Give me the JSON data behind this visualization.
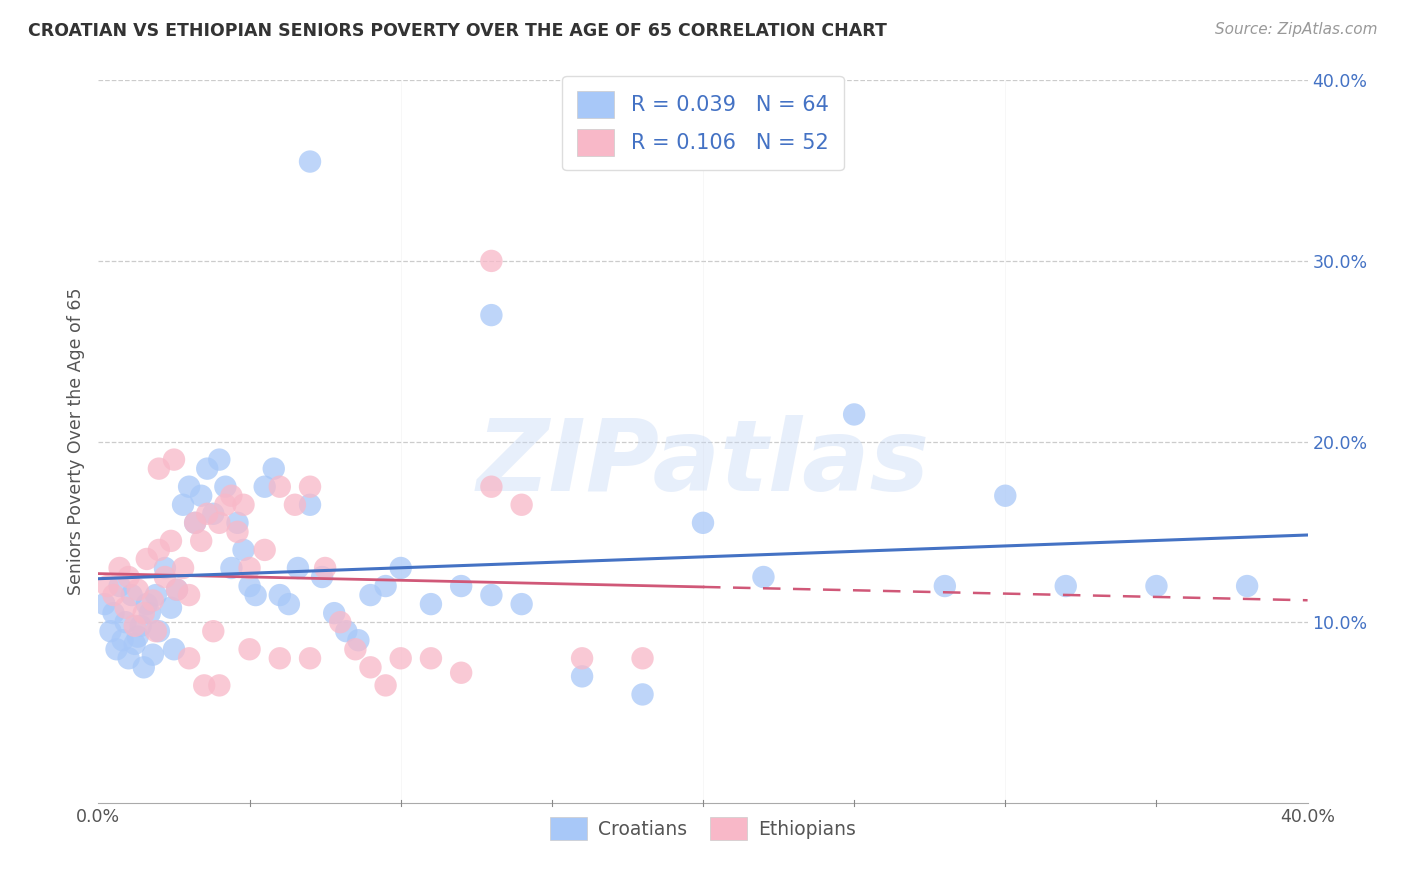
{
  "title": "CROATIAN VS ETHIOPIAN SENIORS POVERTY OVER THE AGE OF 65 CORRELATION CHART",
  "source": "Source: ZipAtlas.com",
  "ylabel": "Seniors Poverty Over the Age of 65",
  "xlim": [
    0.0,
    0.4
  ],
  "ylim": [
    0.0,
    0.4
  ],
  "watermark": "ZIPatlas",
  "croatians_color": "#a8c8f8",
  "ethiopians_color": "#f8b8c8",
  "line_croatians_color": "#4472c4",
  "line_ethiopians_color": "#d05878",
  "legend_text_color": "#4472c4",
  "ytick_color": "#4472c4",
  "xtick_color": "#555555",
  "R_croatians": 0.039,
  "N_croatians": 64,
  "R_ethiopians": 0.106,
  "N_ethiopians": 52,
  "croatians_x": [
    0.002,
    0.004,
    0.005,
    0.006,
    0.007,
    0.008,
    0.009,
    0.01,
    0.011,
    0.012,
    0.013,
    0.014,
    0.015,
    0.016,
    0.017,
    0.018,
    0.019,
    0.02,
    0.022,
    0.024,
    0.025,
    0.026,
    0.028,
    0.03,
    0.032,
    0.034,
    0.036,
    0.038,
    0.04,
    0.042,
    0.044,
    0.046,
    0.048,
    0.05,
    0.052,
    0.055,
    0.058,
    0.06,
    0.063,
    0.066,
    0.07,
    0.074,
    0.078,
    0.082,
    0.086,
    0.09,
    0.095,
    0.1,
    0.11,
    0.12,
    0.13,
    0.14,
    0.16,
    0.18,
    0.2,
    0.22,
    0.25,
    0.28,
    0.3,
    0.32,
    0.35,
    0.38,
    0.07,
    0.13
  ],
  "croatians_y": [
    0.11,
    0.095,
    0.105,
    0.085,
    0.12,
    0.09,
    0.1,
    0.08,
    0.115,
    0.088,
    0.092,
    0.098,
    0.075,
    0.11,
    0.105,
    0.082,
    0.115,
    0.095,
    0.13,
    0.108,
    0.085,
    0.118,
    0.165,
    0.175,
    0.155,
    0.17,
    0.185,
    0.16,
    0.19,
    0.175,
    0.13,
    0.155,
    0.14,
    0.12,
    0.115,
    0.175,
    0.185,
    0.115,
    0.11,
    0.13,
    0.165,
    0.125,
    0.105,
    0.095,
    0.09,
    0.115,
    0.12,
    0.13,
    0.11,
    0.12,
    0.115,
    0.11,
    0.07,
    0.06,
    0.155,
    0.125,
    0.215,
    0.12,
    0.17,
    0.12,
    0.12,
    0.12,
    0.355,
    0.27
  ],
  "ethiopians_x": [
    0.003,
    0.005,
    0.007,
    0.009,
    0.01,
    0.012,
    0.013,
    0.015,
    0.016,
    0.018,
    0.019,
    0.02,
    0.022,
    0.024,
    0.026,
    0.028,
    0.03,
    0.032,
    0.034,
    0.036,
    0.038,
    0.04,
    0.042,
    0.044,
    0.046,
    0.048,
    0.05,
    0.055,
    0.06,
    0.065,
    0.07,
    0.075,
    0.08,
    0.085,
    0.09,
    0.095,
    0.1,
    0.11,
    0.12,
    0.13,
    0.14,
    0.16,
    0.18,
    0.02,
    0.025,
    0.03,
    0.035,
    0.04,
    0.05,
    0.06,
    0.07,
    0.13
  ],
  "ethiopians_y": [
    0.12,
    0.115,
    0.13,
    0.108,
    0.125,
    0.098,
    0.118,
    0.105,
    0.135,
    0.112,
    0.095,
    0.14,
    0.125,
    0.145,
    0.118,
    0.13,
    0.115,
    0.155,
    0.145,
    0.16,
    0.095,
    0.155,
    0.165,
    0.17,
    0.15,
    0.165,
    0.13,
    0.14,
    0.175,
    0.165,
    0.175,
    0.13,
    0.1,
    0.085,
    0.075,
    0.065,
    0.08,
    0.08,
    0.072,
    0.175,
    0.165,
    0.08,
    0.08,
    0.185,
    0.19,
    0.08,
    0.065,
    0.065,
    0.085,
    0.08,
    0.08,
    0.3
  ]
}
